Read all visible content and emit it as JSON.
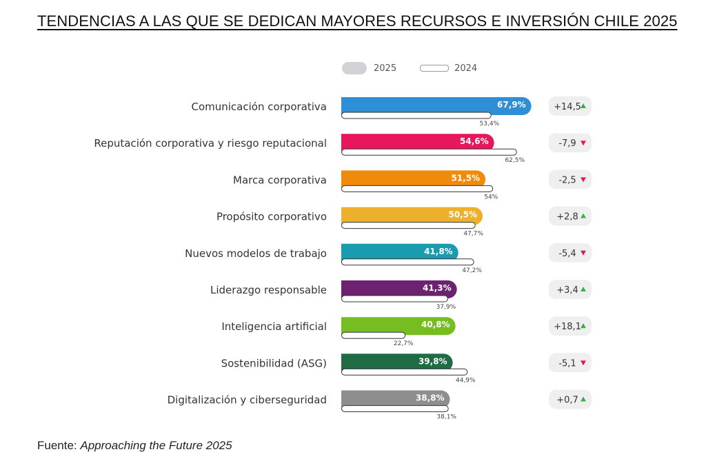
{
  "title": "TENDENCIAS A LAS QUE SE DEDICAN MAYORES RECURSOS E INVERSIÓN CHILE 2025",
  "legend": {
    "current": "2025",
    "previous": "2024"
  },
  "source": {
    "label": "Fuente: ",
    "value": "Approaching the Future 2025"
  },
  "colors": {
    "up": "#3cad4a",
    "down": "#e6194b",
    "prev_bar_stroke": "#333333",
    "delta_bg": "#efefef"
  },
  "chart_data": {
    "type": "bar",
    "orientation": "horizontal",
    "categories": [
      "Comunicación corporativa",
      "Reputación corporativa y riesgo reputacional",
      "Marca corporativa",
      "Propósito corporativo",
      "Nuevos modelos de trabajo",
      "Liderazgo responsable",
      "Inteligencia artificial",
      "Sostenibilidad (ASG)",
      "Digitalización y ciberseguridad"
    ],
    "series": [
      {
        "name": "2025",
        "values": [
          67.9,
          54.6,
          51.5,
          50.5,
          41.8,
          41.3,
          40.8,
          39.8,
          38.8
        ],
        "labels": [
          "67,9%",
          "54,6%",
          "51,5%",
          "50,5%",
          "41,8%",
          "41,3%",
          "40,8%",
          "39,8%",
          "38,8%"
        ],
        "colors": [
          "#2e8fd6",
          "#e8175d",
          "#f08a0a",
          "#ecb02e",
          "#1a9cb0",
          "#6c2270",
          "#76bd22",
          "#1f6b44",
          "#8e8e8e"
        ]
      },
      {
        "name": "2024",
        "values": [
          53.4,
          62.5,
          54,
          47.7,
          47.2,
          37.9,
          22.7,
          44.9,
          38.1
        ],
        "labels": [
          "53,4%",
          "62,5%",
          "54%",
          "47,7%",
          "47,2%",
          "37,9%",
          "22,7%",
          "44,9%",
          "38,1%"
        ]
      }
    ],
    "deltas": [
      {
        "text": "+14,5",
        "direction": "up"
      },
      {
        "text": "-7,9",
        "direction": "down"
      },
      {
        "text": "-2,5",
        "direction": "down"
      },
      {
        "text": "+2,8",
        "direction": "up"
      },
      {
        "text": "-5,4",
        "direction": "down"
      },
      {
        "text": "+3,4",
        "direction": "up"
      },
      {
        "text": "+18,1",
        "direction": "up"
      },
      {
        "text": "-5,1",
        "direction": "down"
      },
      {
        "text": "+0,7",
        "direction": "up"
      }
    ],
    "xlim": [
      0,
      70
    ],
    "legend_position": "top"
  }
}
